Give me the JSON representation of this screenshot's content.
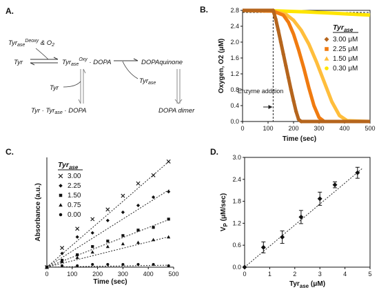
{
  "panels": {
    "A": "A.",
    "B": "B.",
    "C": "C.",
    "D": "D."
  },
  "scheme": {
    "tyr_deoxy_o2": "Tyr_ase^Deoxy & O2",
    "tyr": "Tyr",
    "oxy_complex": "Tyr_ase^Oxy · DOPA",
    "dopaquinone": "DOPAquinone",
    "tyrase": "Tyr_ase",
    "tyr2": "Tyr",
    "tyr_tyrase_dopa": "Tyr · Tyr_ase · DOPA",
    "dopa_dimer": "DOPA dimer"
  },
  "chart_data": [
    {
      "id": "B",
      "type": "line",
      "ylabel": "Oxygen, O2 (μM)",
      "xlabel": "Time (sec)",
      "xlim": [
        0,
        500
      ],
      "ylim": [
        0,
        2.8
      ],
      "xticks": [
        0,
        100,
        200,
        300,
        400,
        500
      ],
      "yticks": [
        0.0,
        0.4,
        0.8,
        1.2,
        1.6,
        2.0,
        2.4,
        2.8
      ],
      "yticklabels": [
        "0.0",
        "0.4",
        "0.8",
        "1.2",
        "1.6",
        "2.0",
        "2.4",
        "2.8"
      ],
      "legend_title": "Tyr_ase",
      "legend_position": "top-right",
      "annotation": "Enzyme addition",
      "annotation_x": 120,
      "reference_y": 2.8,
      "series": [
        {
          "name": "3.00 μM",
          "color": "#b5651d",
          "marker": "diamond",
          "x": [
            0,
            120,
            130,
            140,
            150,
            160,
            170,
            180,
            190,
            200,
            210,
            220,
            230,
            500
          ],
          "y": [
            2.8,
            2.8,
            2.58,
            2.3,
            2.0,
            1.7,
            1.4,
            1.1,
            0.8,
            0.52,
            0.25,
            0.05,
            0.0,
            0.0
          ]
        },
        {
          "name": "2.25 μM",
          "color": "#f07b10",
          "marker": "square",
          "x": [
            0,
            120,
            160,
            180,
            200,
            220,
            240,
            260,
            280,
            300,
            320,
            500
          ],
          "y": [
            2.8,
            2.78,
            2.68,
            2.5,
            2.2,
            1.8,
            1.35,
            0.85,
            0.4,
            0.1,
            0.0,
            0.0
          ]
        },
        {
          "name": "1.50 μM",
          "color": "#ffbe3c",
          "marker": "triangle",
          "x": [
            0,
            120,
            170,
            200,
            230,
            260,
            290,
            320,
            350,
            380,
            410,
            500
          ],
          "y": [
            2.8,
            2.78,
            2.7,
            2.55,
            2.3,
            1.95,
            1.5,
            1.0,
            0.5,
            0.15,
            0.02,
            0.0
          ]
        },
        {
          "name": "0.30 μM",
          "color": "#ffe500",
          "marker": "circle",
          "x": [
            0,
            120,
            250,
            350,
            500
          ],
          "y": [
            2.8,
            2.79,
            2.76,
            2.73,
            2.68
          ]
        }
      ]
    },
    {
      "id": "C",
      "type": "scatter",
      "ylabel": "Absorbance (a.u.)",
      "xlabel": "Time (sec)",
      "xlim": [
        0,
        500
      ],
      "ylim": [
        0,
        0.8
      ],
      "xticks": [
        0,
        100,
        200,
        300,
        400,
        500
      ],
      "legend_title": "Tyr_ase",
      "legend_position": "top-left",
      "series": [
        {
          "name": "3.00",
          "marker": "x",
          "x": [
            0,
            60,
            120,
            180,
            240,
            300,
            360,
            420,
            480
          ],
          "y": [
            0.0,
            0.14,
            0.28,
            0.35,
            0.42,
            0.52,
            0.61,
            0.67,
            0.77
          ],
          "fit_slope": 0.0016
        },
        {
          "name": "2.25",
          "marker": "diamond",
          "x": [
            0,
            60,
            120,
            180,
            240,
            300,
            360,
            420,
            480
          ],
          "y": [
            0.0,
            0.1,
            0.22,
            0.25,
            0.34,
            0.4,
            0.45,
            0.51,
            0.55
          ],
          "fit_slope": 0.00117
        },
        {
          "name": "1.50",
          "marker": "square",
          "x": [
            0,
            60,
            120,
            180,
            240,
            300,
            360,
            420,
            480
          ],
          "y": [
            0.0,
            0.05,
            0.09,
            0.15,
            0.19,
            0.23,
            0.27,
            0.29,
            0.35
          ],
          "fit_slope": 0.00072
        },
        {
          "name": "0.75",
          "marker": "triangle",
          "x": [
            0,
            60,
            120,
            180,
            240,
            300,
            360,
            420,
            480
          ],
          "y": [
            0.0,
            0.04,
            0.07,
            0.11,
            0.15,
            0.17,
            0.18,
            0.2,
            0.22
          ],
          "fit_slope": 0.00046
        },
        {
          "name": "0.00",
          "marker": "circle",
          "x": [
            0,
            60,
            120,
            180,
            240,
            300,
            360,
            420,
            480
          ],
          "y": [
            0.0,
            0.01,
            0.01,
            0.02,
            0.02,
            0.02,
            0.02,
            0.02,
            0.01
          ],
          "fit_slope": 3e-05
        }
      ]
    },
    {
      "id": "D",
      "type": "scatter",
      "ylabel": "V_P (μM/sec)",
      "xlabel": "Tyr_ase (μM)",
      "xlim": [
        0,
        5
      ],
      "ylim": [
        0,
        3.0
      ],
      "xticks": [
        0,
        1,
        2,
        3,
        4,
        5
      ],
      "yticks": [
        0.0,
        0.6,
        1.2,
        1.8,
        2.4,
        3.0
      ],
      "yticklabels": [
        "0.0",
        "0.6",
        "1.2",
        "1.8",
        "2.4",
        "3.0"
      ],
      "series": [
        {
          "name": "",
          "marker": "diamond",
          "x": [
            0,
            0.75,
            1.5,
            2.25,
            3.0,
            3.6,
            4.5
          ],
          "y": [
            0.0,
            0.54,
            0.82,
            1.37,
            1.87,
            2.25,
            2.58
          ],
          "err": [
            0,
            0.15,
            0.17,
            0.18,
            0.18,
            0.08,
            0.15
          ],
          "fit_slope": 0.575
        }
      ]
    }
  ]
}
